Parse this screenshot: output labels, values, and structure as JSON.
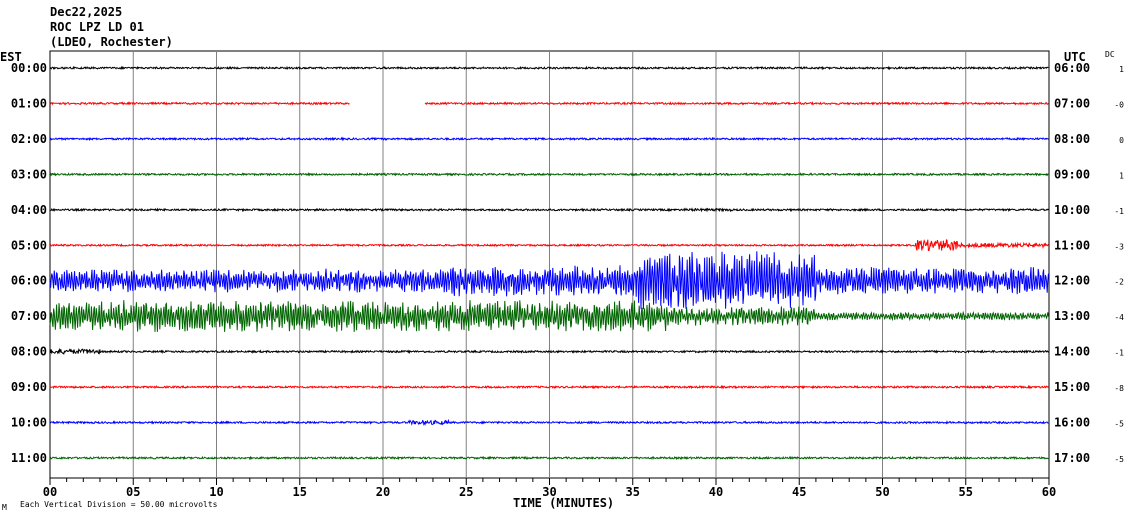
{
  "chart_data": {
    "type": "line",
    "header": {
      "date": "Dec22,2025",
      "station": "ROC LPZ LD 01",
      "network": "(LDEO, Rochester)"
    },
    "left_axis_title": "EST",
    "right_axis_title": "UTC",
    "dc_title": "DC",
    "xlabel": "TIME (MINUTES)",
    "xlim": [
      0,
      60
    ],
    "x_ticks": [
      "00",
      "05",
      "10",
      "15",
      "20",
      "25",
      "30",
      "35",
      "40",
      "45",
      "50",
      "55",
      "60"
    ],
    "scale_note": "Each Vertical Division =   50.00 microvolts",
    "corner_mark": "M",
    "grid": true,
    "colors": [
      "#000000",
      "#ff0000",
      "#0000ff",
      "#006400"
    ],
    "rows": [
      {
        "est": "00:00",
        "utc": "06:00",
        "dc": "1"
      },
      {
        "est": "01:00",
        "utc": "07:00",
        "dc": "-0",
        "gap_minutes": [
          18,
          22.5
        ]
      },
      {
        "est": "02:00",
        "utc": "08:00",
        "dc": "0"
      },
      {
        "est": "03:00",
        "utc": "09:00",
        "dc": "1"
      },
      {
        "est": "04:00",
        "utc": "10:00",
        "dc": "-1"
      },
      {
        "est": "05:00",
        "utc": "11:00",
        "dc": "-3"
      },
      {
        "est": "06:00",
        "utc": "12:00",
        "dc": "-2"
      },
      {
        "est": "07:00",
        "utc": "13:00",
        "dc": "-4"
      },
      {
        "est": "08:00",
        "utc": "14:00",
        "dc": "-1"
      },
      {
        "est": "09:00",
        "utc": "15:00",
        "dc": "-8"
      },
      {
        "est": "10:00",
        "utc": "16:00",
        "dc": "-5"
      },
      {
        "est": "11:00",
        "utc": "17:00",
        "dc": "-5"
      }
    ]
  }
}
